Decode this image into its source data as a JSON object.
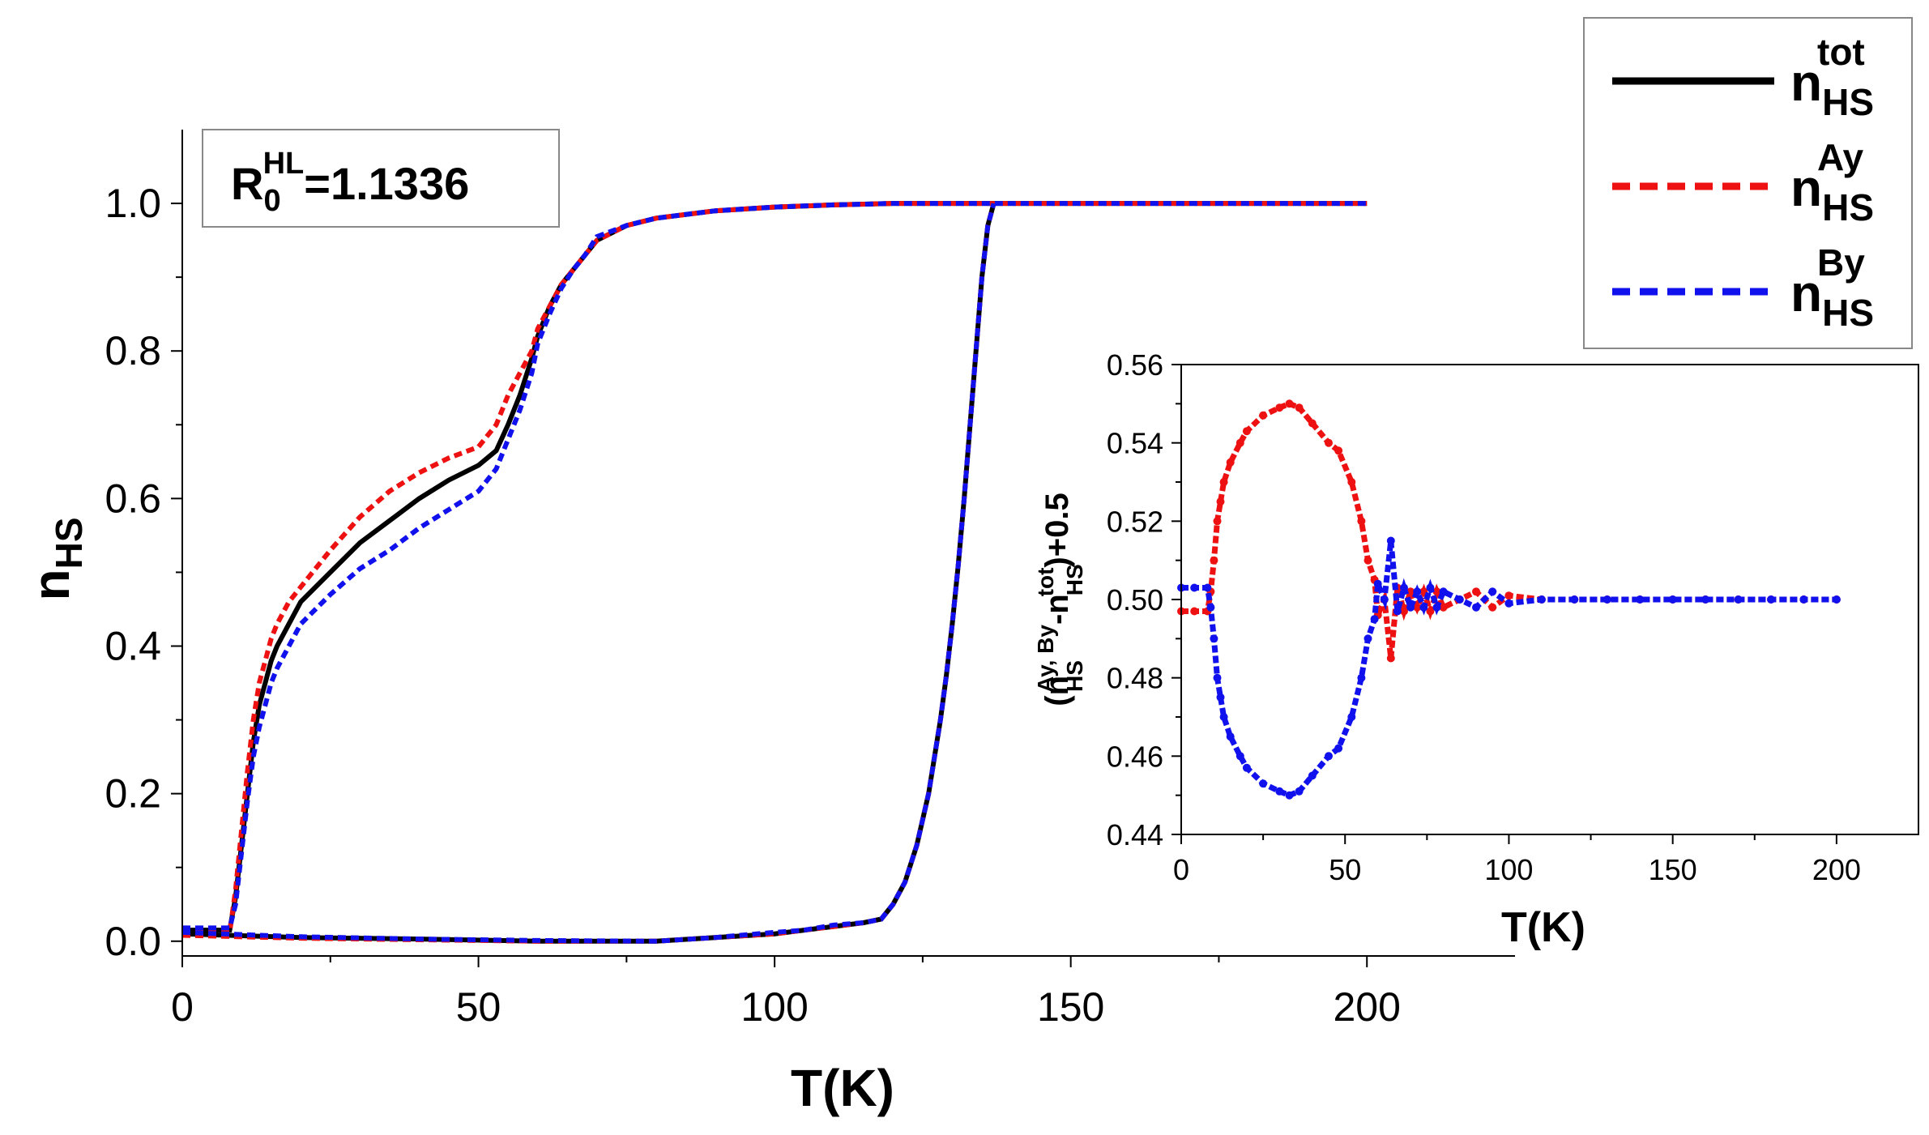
{
  "chart_data": [
    {
      "type": "line",
      "xlabel": "T(K)",
      "ylabel": "n",
      "ylabel_sub": "HS",
      "xlim": [
        0,
        225
      ],
      "ylim": [
        -0.02,
        1.1
      ],
      "xticks": [
        "0",
        "50",
        "100",
        "150",
        "200"
      ],
      "xtick_values": [
        0,
        50,
        100,
        150,
        200
      ],
      "yticks": [
        "0.0",
        "0.2",
        "0.4",
        "0.6",
        "0.8",
        "1.0"
      ],
      "ytick_values": [
        0.0,
        0.2,
        0.4,
        0.6,
        0.8,
        1.0
      ],
      "annotation": {
        "main": "R",
        "sub": "0",
        "sup": "HL",
        "value": "=1.1336"
      },
      "legend": [
        {
          "base": "n",
          "sup": "tot",
          "sub": "HS",
          "style": "solid",
          "color": "#000000"
        },
        {
          "base": "n",
          "sup": "Ay",
          "sub": "HS",
          "style": "dashed",
          "color": "#ee1111"
        },
        {
          "base": "n",
          "sup": "By",
          "sub": "HS",
          "style": "dashed",
          "color": "#1111ee"
        }
      ],
      "series": [
        {
          "name": "n_HS^tot",
          "color": "#000000",
          "branches": [
            {
              "x": [
                0,
                5,
                8,
                9,
                10,
                11,
                12,
                13,
                14,
                15,
                16,
                18,
                20,
                25,
                30,
                35,
                40,
                45,
                50,
                53,
                55,
                57,
                59,
                60,
                62,
                64,
                66,
                68,
                70,
                75,
                80,
                90,
                100,
                110,
                120,
                130,
                140,
                150,
                160,
                170,
                180,
                190,
                200
              ],
              "y": [
                0.015,
                0.015,
                0.015,
                0.06,
                0.13,
                0.2,
                0.27,
                0.32,
                0.35,
                0.38,
                0.4,
                0.43,
                0.46,
                0.5,
                0.54,
                0.57,
                0.6,
                0.625,
                0.645,
                0.665,
                0.7,
                0.74,
                0.79,
                0.82,
                0.86,
                0.89,
                0.91,
                0.93,
                0.95,
                0.97,
                0.98,
                0.99,
                0.995,
                0.998,
                1.0,
                1.0,
                1.0,
                1.0,
                1.0,
                1.0,
                1.0,
                1.0,
                1.0
              ]
            },
            {
              "x": [
                0,
                20,
                40,
                60,
                80,
                90,
                100,
                105,
                110,
                115,
                118,
                120,
                122,
                124,
                126,
                128,
                129,
                130,
                131,
                132,
                133,
                134,
                135,
                136,
                137
              ],
              "y": [
                0.01,
                0.005,
                0.003,
                0.0,
                0.0,
                0.005,
                0.01,
                0.015,
                0.02,
                0.025,
                0.03,
                0.05,
                0.08,
                0.13,
                0.2,
                0.3,
                0.36,
                0.43,
                0.51,
                0.6,
                0.7,
                0.8,
                0.9,
                0.97,
                1.0
              ]
            }
          ]
        },
        {
          "name": "n_HS^Ay",
          "color": "#ee1111",
          "branches": [
            {
              "x": [
                0,
                5,
                8,
                9,
                10,
                11,
                12,
                13,
                14,
                15,
                16,
                18,
                20,
                25,
                30,
                35,
                40,
                45,
                50,
                53,
                55,
                57,
                59,
                60,
                62,
                64,
                66,
                68,
                70,
                75,
                80,
                90,
                100,
                110,
                120,
                130,
                140,
                150,
                160,
                170,
                180,
                190,
                200
              ],
              "y": [
                0.012,
                0.012,
                0.012,
                0.07,
                0.15,
                0.23,
                0.3,
                0.35,
                0.38,
                0.41,
                0.43,
                0.46,
                0.48,
                0.53,
                0.575,
                0.61,
                0.635,
                0.655,
                0.67,
                0.7,
                0.74,
                0.77,
                0.8,
                0.83,
                0.86,
                0.89,
                0.91,
                0.93,
                0.95,
                0.97,
                0.98,
                0.99,
                0.995,
                0.998,
                1.0,
                1.0,
                1.0,
                1.0,
                1.0,
                1.0,
                1.0,
                1.0,
                1.0
              ]
            },
            {
              "x": [
                0,
                20,
                40,
                60,
                80,
                90,
                100,
                105,
                110,
                115,
                118,
                120,
                122,
                124,
                126,
                128,
                129,
                130,
                131,
                132,
                133,
                134,
                135,
                136,
                137
              ],
              "y": [
                0.008,
                0.004,
                0.002,
                0.0,
                0.0,
                0.005,
                0.01,
                0.015,
                0.02,
                0.025,
                0.03,
                0.05,
                0.08,
                0.13,
                0.2,
                0.3,
                0.36,
                0.43,
                0.51,
                0.6,
                0.7,
                0.8,
                0.9,
                0.97,
                1.0
              ]
            }
          ]
        },
        {
          "name": "n_HS^By",
          "color": "#1111ee",
          "branches": [
            {
              "x": [
                0,
                5,
                8,
                9,
                10,
                11,
                12,
                13,
                14,
                15,
                16,
                18,
                20,
                25,
                30,
                35,
                40,
                45,
                50,
                53,
                55,
                57,
                59,
                60,
                62,
                64,
                66,
                68,
                70,
                75,
                80,
                90,
                100,
                110,
                120,
                130,
                140,
                150,
                160,
                170,
                180,
                190,
                200
              ],
              "y": [
                0.018,
                0.018,
                0.018,
                0.05,
                0.12,
                0.19,
                0.25,
                0.29,
                0.32,
                0.35,
                0.37,
                0.4,
                0.43,
                0.47,
                0.505,
                0.53,
                0.56,
                0.585,
                0.61,
                0.64,
                0.68,
                0.72,
                0.77,
                0.81,
                0.85,
                0.885,
                0.91,
                0.93,
                0.955,
                0.97,
                0.98,
                0.99,
                0.995,
                0.998,
                1.0,
                1.0,
                1.0,
                1.0,
                1.0,
                1.0,
                1.0,
                1.0,
                1.0
              ]
            },
            {
              "x": [
                0,
                20,
                40,
                60,
                80,
                90,
                100,
                105,
                110,
                115,
                118,
                120,
                122,
                124,
                126,
                128,
                129,
                130,
                131,
                132,
                133,
                134,
                135,
                136,
                137
              ],
              "y": [
                0.012,
                0.006,
                0.003,
                0.001,
                0.0,
                0.005,
                0.012,
                0.015,
                0.022,
                0.025,
                0.03,
                0.05,
                0.08,
                0.13,
                0.2,
                0.3,
                0.36,
                0.43,
                0.51,
                0.6,
                0.7,
                0.8,
                0.9,
                0.97,
                1.0
              ]
            }
          ]
        }
      ]
    },
    {
      "type": "scatter",
      "xlabel": "T(K)",
      "ylabel": "(n_HS^{Ay, By} - n_HS^{tot}) + 0.5",
      "xlim": [
        0,
        225
      ],
      "ylim": [
        0.44,
        0.56
      ],
      "xticks": [
        "0",
        "50",
        "100",
        "150",
        "200"
      ],
      "xtick_values": [
        0,
        50,
        100,
        150,
        200
      ],
      "yticks": [
        "0.44",
        "0.46",
        "0.48",
        "0.50",
        "0.52",
        "0.54",
        "0.56"
      ],
      "ytick_values": [
        0.44,
        0.46,
        0.48,
        0.5,
        0.52,
        0.54,
        0.56
      ],
      "series": [
        {
          "name": "Ay",
          "color": "#ee1111",
          "x": [
            0,
            4,
            8,
            9,
            10,
            11,
            12,
            13,
            15,
            18,
            20,
            25,
            30,
            33,
            36,
            40,
            45,
            48,
            52,
            55,
            57,
            59,
            60,
            62,
            64,
            66,
            68,
            70,
            72,
            74,
            76,
            78,
            80,
            85,
            90,
            95,
            100,
            110,
            120,
            130,
            140,
            150,
            160,
            170,
            180,
            190,
            200
          ],
          "y": [
            0.497,
            0.497,
            0.497,
            0.502,
            0.51,
            0.52,
            0.525,
            0.53,
            0.535,
            0.54,
            0.543,
            0.547,
            0.549,
            0.55,
            0.549,
            0.545,
            0.54,
            0.538,
            0.53,
            0.52,
            0.51,
            0.505,
            0.496,
            0.5,
            0.485,
            0.503,
            0.497,
            0.502,
            0.498,
            0.502,
            0.497,
            0.502,
            0.498,
            0.5,
            0.502,
            0.498,
            0.501,
            0.5,
            0.5,
            0.5,
            0.5,
            0.5,
            0.5,
            0.5,
            0.5,
            0.5,
            0.5
          ]
        },
        {
          "name": "By",
          "color": "#1111ee",
          "x": [
            0,
            4,
            8,
            9,
            10,
            11,
            12,
            13,
            15,
            18,
            20,
            25,
            30,
            33,
            36,
            40,
            45,
            48,
            52,
            55,
            57,
            59,
            60,
            62,
            64,
            66,
            68,
            70,
            72,
            74,
            76,
            78,
            80,
            85,
            90,
            95,
            100,
            110,
            120,
            130,
            140,
            150,
            160,
            170,
            180,
            190,
            200
          ],
          "y": [
            0.503,
            0.503,
            0.503,
            0.498,
            0.49,
            0.48,
            0.475,
            0.47,
            0.465,
            0.46,
            0.457,
            0.453,
            0.451,
            0.45,
            0.451,
            0.455,
            0.46,
            0.462,
            0.47,
            0.48,
            0.49,
            0.495,
            0.504,
            0.5,
            0.515,
            0.497,
            0.503,
            0.498,
            0.502,
            0.498,
            0.503,
            0.498,
            0.502,
            0.5,
            0.498,
            0.502,
            0.499,
            0.5,
            0.5,
            0.5,
            0.5,
            0.5,
            0.5,
            0.5,
            0.5,
            0.5,
            0.5
          ]
        }
      ]
    }
  ]
}
